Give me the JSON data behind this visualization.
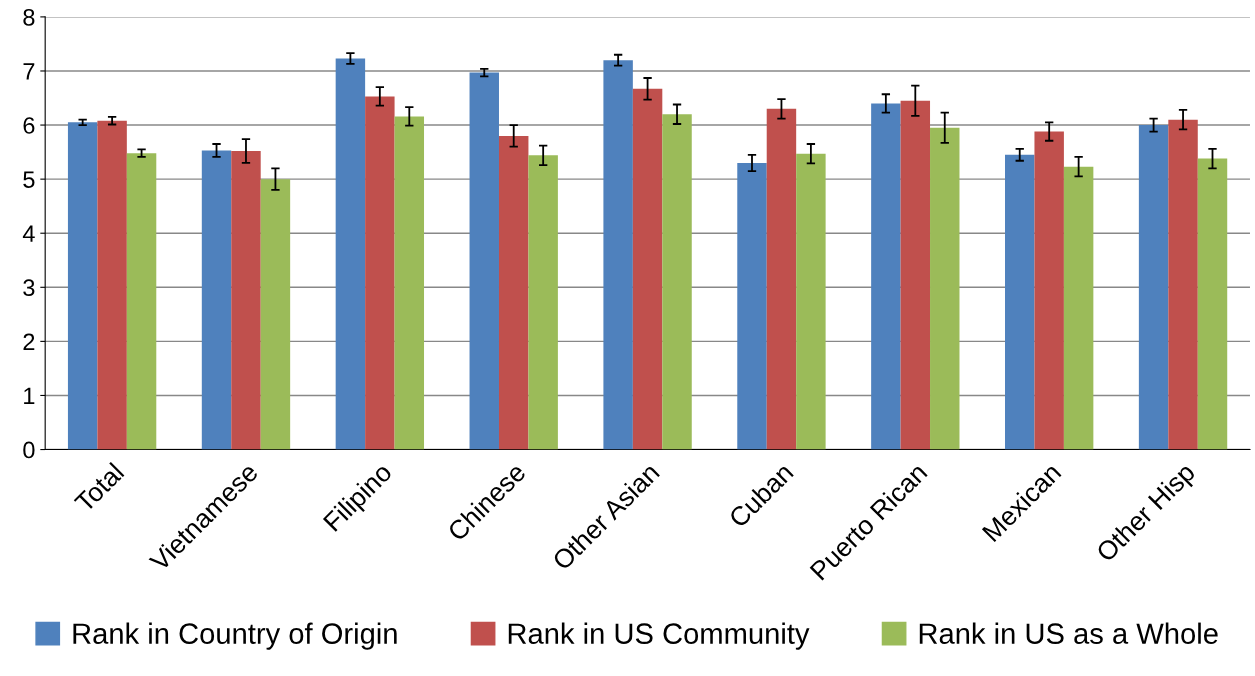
{
  "chart_data": {
    "type": "bar",
    "categories": [
      "Total",
      "Vietnamese",
      "Filipino",
      "Chinese",
      "Other Asian",
      "Cuban",
      "Puerto Rican",
      "Mexican",
      "Other Hisp"
    ],
    "series": [
      {
        "name": "Rank in Country of Origin",
        "color": "#4f81bd",
        "values": [
          6.05,
          5.53,
          7.23,
          6.97,
          7.2,
          5.3,
          6.4,
          5.45,
          6.0
        ],
        "errors": [
          0.05,
          0.12,
          0.1,
          0.07,
          0.1,
          0.15,
          0.17,
          0.11,
          0.12
        ]
      },
      {
        "name": "Rank in US Community",
        "color": "#c0504d",
        "values": [
          6.08,
          5.52,
          6.53,
          5.8,
          6.67,
          6.3,
          6.45,
          5.88,
          6.1
        ],
        "errors": [
          0.07,
          0.22,
          0.17,
          0.2,
          0.2,
          0.18,
          0.28,
          0.17,
          0.18
        ]
      },
      {
        "name": "Rank in US as a Whole",
        "color": "#9bbb59",
        "values": [
          5.48,
          5.0,
          6.16,
          5.44,
          6.2,
          5.47,
          5.95,
          5.23,
          5.38
        ],
        "errors": [
          0.07,
          0.2,
          0.17,
          0.18,
          0.18,
          0.18,
          0.28,
          0.18,
          0.18
        ]
      }
    ],
    "ylim": [
      0,
      8
    ],
    "yticks": [
      0,
      1,
      2,
      3,
      4,
      5,
      6,
      7,
      8
    ],
    "grid": "y",
    "legend": "bottom"
  }
}
